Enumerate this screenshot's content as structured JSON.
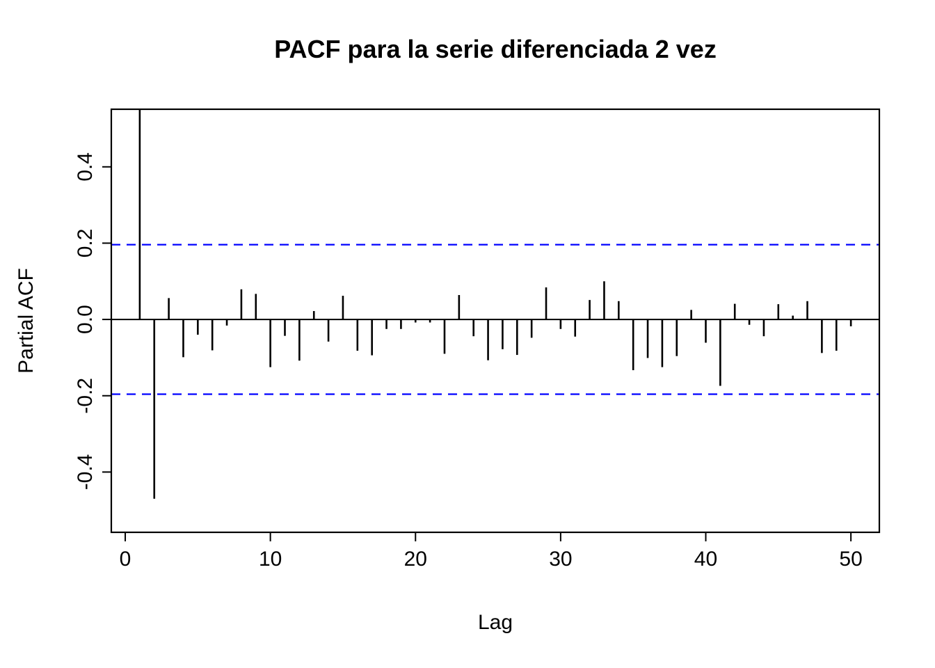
{
  "chart_data": {
    "type": "bar",
    "subtype": "pacf-stem-plot",
    "title": "PACF para la serie diferenciada 2 vez",
    "xlabel": "Lag",
    "ylabel": "Partial ACF",
    "grid": false,
    "legend": "none",
    "xlim": [
      -0.96,
      51.96
    ],
    "ylim": [
      -0.558,
      0.551
    ],
    "x_ticks": [
      {
        "v": 0,
        "label": "0"
      },
      {
        "v": 10,
        "label": "10"
      },
      {
        "v": 20,
        "label": "20"
      },
      {
        "v": 30,
        "label": "30"
      },
      {
        "v": 40,
        "label": "40"
      },
      {
        "v": 50,
        "label": "50"
      }
    ],
    "y_ticks": [
      {
        "v": -0.4,
        "label": "-0.4"
      },
      {
        "v": -0.2,
        "label": "-0.2"
      },
      {
        "v": 0.0,
        "label": "0.0"
      },
      {
        "v": 0.2,
        "label": "0.2"
      },
      {
        "v": 0.4,
        "label": "0.4"
      }
    ],
    "confidence_bound": 0.196,
    "confidence_line_style": "dashed",
    "confidence_line_color": "#0000FF",
    "bar_color": "#000000",
    "axis_color": "#000000",
    "lags": [
      1,
      2,
      3,
      4,
      5,
      6,
      7,
      8,
      9,
      10,
      11,
      12,
      13,
      14,
      15,
      16,
      17,
      18,
      19,
      20,
      21,
      22,
      23,
      24,
      25,
      26,
      27,
      28,
      29,
      30,
      31,
      32,
      33,
      34,
      35,
      36,
      37,
      38,
      39,
      40,
      41,
      42,
      43,
      44,
      45,
      46,
      47,
      48,
      49,
      50
    ],
    "values": [
      0.55,
      -0.47,
      0.056,
      -0.099,
      -0.04,
      -0.081,
      -0.016,
      0.079,
      0.067,
      -0.125,
      -0.043,
      -0.108,
      0.022,
      -0.058,
      0.062,
      -0.082,
      -0.094,
      -0.025,
      -0.025,
      -0.008,
      -0.008,
      -0.09,
      0.064,
      -0.044,
      -0.107,
      -0.078,
      -0.093,
      -0.048,
      0.084,
      -0.025,
      -0.045,
      0.051,
      0.1,
      0.048,
      -0.133,
      -0.101,
      -0.125,
      -0.096,
      0.025,
      -0.061,
      -0.174,
      0.041,
      -0.014,
      -0.044,
      0.04,
      0.01,
      0.048,
      -0.088,
      -0.082,
      -0.018
    ]
  }
}
